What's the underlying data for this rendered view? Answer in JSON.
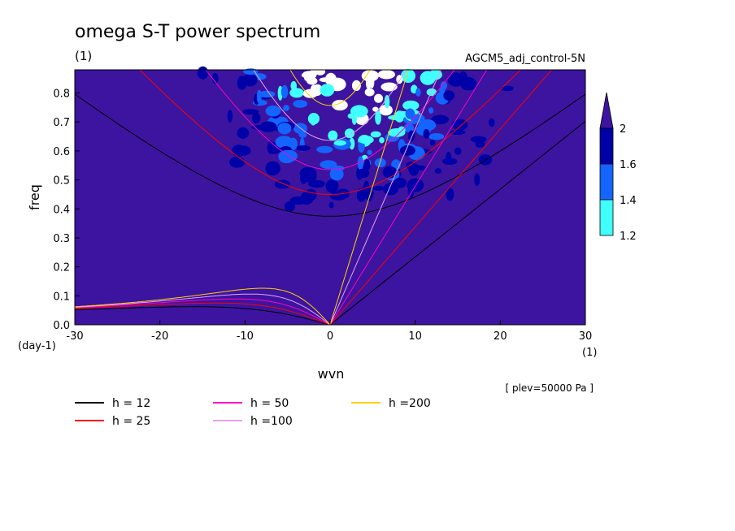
{
  "title": "omega S-T power spectrum",
  "units_label": "(1)",
  "run_label": "AGCM5_adj_control-5N",
  "x_axis": {
    "label": "wvn",
    "unit": "(1)",
    "ticks": [
      "-30",
      "-20",
      "-10",
      "0",
      "10",
      "20",
      "30"
    ],
    "range": [
      -30,
      30
    ]
  },
  "y_axis": {
    "label": "freq",
    "unit": "(day-1)",
    "ticks": [
      "0.0",
      "0.1",
      "0.2",
      "0.3",
      "0.4",
      "0.5",
      "0.6",
      "0.7",
      "0.8"
    ],
    "range": [
      0,
      0.88
    ]
  },
  "colorbar": {
    "labels": [
      "1.2",
      "1.4",
      "1.6",
      "2"
    ],
    "colors": [
      "#40ffff",
      "#1464ff",
      "#0000a8",
      "#3c14a0"
    ],
    "background": "#3c14a0"
  },
  "level_note": "[ plev=50000 Pa ]",
  "legend": [
    {
      "label": "h = 12",
      "color": "#000000"
    },
    {
      "label": "h = 25",
      "color": "#ff0000"
    },
    {
      "label": "h = 50",
      "color": "#ff00c8"
    },
    {
      "label": "h =100",
      "color": "#e8a0f0"
    },
    {
      "label": "h =200",
      "color": "#ffd000"
    }
  ],
  "chart_data": {
    "type": "heatmap",
    "title": "omega S-T power spectrum",
    "xlabel": "wvn",
    "ylabel": "freq",
    "xlim": [
      -30,
      30
    ],
    "ylim": [
      0,
      0.88
    ],
    "color_levels": [
      1.2,
      1.4,
      1.6,
      2
    ],
    "equivalent_depths_m": [
      12,
      25,
      50,
      100,
      200
    ],
    "series": [
      {
        "name": "h = 12",
        "kelvin_freq_at_wvn_30": 0.7,
        "er_peak_freq": 0.065,
        "ig_min_freq": 0.37
      },
      {
        "name": "h = 25",
        "kelvin_freq_at_wvn_30": 0.88,
        "er_peak_freq": 0.08,
        "ig_min_freq": 0.44
      },
      {
        "name": "h = 50",
        "er_peak_freq": 0.095,
        "ig_min_freq": 0.53
      },
      {
        "name": "h =100",
        "er_peak_freq": 0.11,
        "ig_min_freq": 0.63
      },
      {
        "name": "h =200",
        "er_peak_freq": 0.13,
        "ig_min_freq": 0.75
      }
    ]
  }
}
